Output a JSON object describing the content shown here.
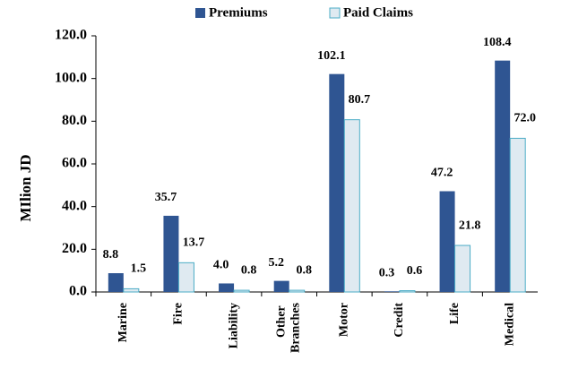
{
  "chart_data": {
    "type": "bar",
    "y_label": "MIlion JD",
    "categories": [
      "Marine",
      "Fire",
      "Liability",
      "Other Branches",
      "Motor",
      "Credit",
      "Life",
      "Medical"
    ],
    "series": [
      {
        "name": "Premiums",
        "color": "#2f5592",
        "values": [
          8.8,
          35.7,
          4.0,
          5.2,
          102.1,
          0.3,
          47.2,
          108.4
        ],
        "value_labels": [
          "8.8",
          "35.7",
          "4.0",
          "5.2",
          "102.1",
          "0.3",
          "47.2",
          "108.4"
        ]
      },
      {
        "name": "Paid Claims",
        "color": "#dfeaf1",
        "values": [
          1.5,
          13.7,
          0.8,
          0.8,
          80.7,
          0.6,
          21.8,
          72.0
        ],
        "value_labels": [
          "1.5",
          "13.7",
          "0.8",
          "0.8",
          "80.7",
          "0.6",
          "21.8",
          "72.0"
        ]
      }
    ],
    "ylim": [
      0,
      120
    ],
    "yticks": [
      {
        "value": 0,
        "label": "0.0"
      },
      {
        "value": 20,
        "label": "20.0"
      },
      {
        "value": 40,
        "label": "40.0"
      },
      {
        "value": 60,
        "label": "60.0"
      },
      {
        "value": 80,
        "label": "80.0"
      },
      {
        "value": 100,
        "label": "100.0"
      },
      {
        "value": 120,
        "label": "120.0"
      }
    ],
    "grid": false
  }
}
